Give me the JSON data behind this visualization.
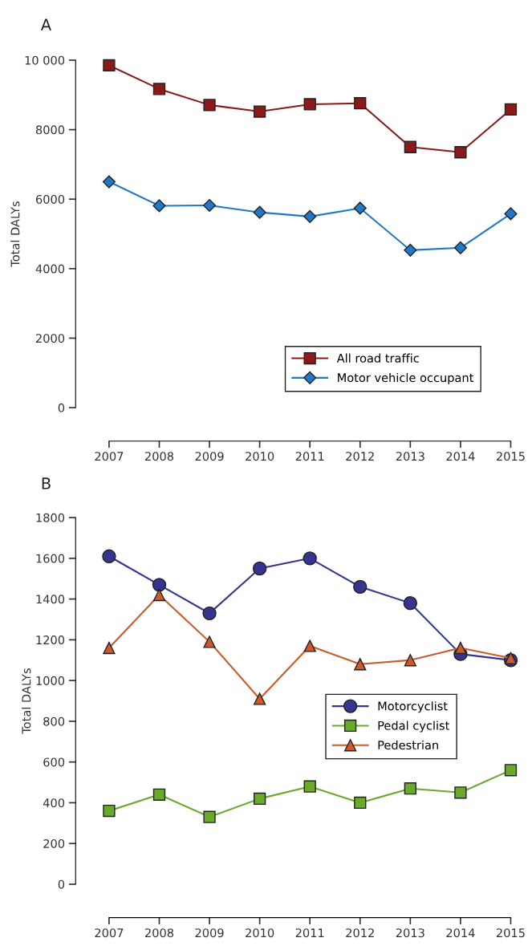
{
  "chart_data": [
    {
      "type": "line",
      "title": "A",
      "ylabel": "Total DALYs",
      "x": [
        2007,
        2008,
        2009,
        2010,
        2011,
        2012,
        2013,
        2014,
        2015
      ],
      "xlim": [
        2007,
        2015
      ],
      "xticks": [
        2007,
        2008,
        2009,
        2010,
        2011,
        2012,
        2013,
        2014,
        2015
      ],
      "ylim": [
        0,
        10000
      ],
      "yticks": [
        0,
        2000,
        4000,
        6000,
        8000,
        {
          "value": 10000,
          "label": "10 000"
        }
      ],
      "grid": false,
      "legend": "bottom right",
      "series": [
        {
          "name": "All road traffic",
          "color": "#8b1a1a",
          "marker": "square",
          "values": [
            9850,
            9170,
            8710,
            8520,
            8730,
            8760,
            7500,
            7350,
            8580
          ]
        },
        {
          "name": "Motor vehicle occupant",
          "color": "#1f78c8",
          "marker": "diamond",
          "values": [
            6500,
            5810,
            5820,
            5620,
            5500,
            5740,
            4530,
            4600,
            5580
          ]
        }
      ]
    },
    {
      "type": "line",
      "title": "B",
      "ylabel": "Total DALYs",
      "x": [
        2007,
        2008,
        2009,
        2010,
        2011,
        2012,
        2013,
        2014,
        2015
      ],
      "xlim": [
        2007,
        2015
      ],
      "xticks": [
        2007,
        2008,
        2009,
        2010,
        2011,
        2012,
        2013,
        2014,
        2015
      ],
      "ylim": [
        0,
        1800
      ],
      "yticks": [
        0,
        200,
        400,
        600,
        800,
        1000,
        1200,
        1400,
        1600,
        1800
      ],
      "grid": false,
      "legend": "right",
      "series": [
        {
          "name": "Motorcyclist",
          "color": "#35348f",
          "marker": "circle",
          "values": [
            1610,
            1470,
            1330,
            1550,
            1600,
            1460,
            1380,
            1130,
            1100
          ]
        },
        {
          "name": "Pedal cyclist",
          "color": "#6aaa2a",
          "marker": "square",
          "values": [
            360,
            440,
            330,
            420,
            480,
            400,
            470,
            450,
            560
          ]
        },
        {
          "name": "Pedestrian",
          "color": "#cc5a2a",
          "marker": "triangle",
          "values": [
            1160,
            1420,
            1190,
            910,
            1170,
            1080,
            1100,
            1160,
            1110
          ]
        }
      ]
    }
  ]
}
